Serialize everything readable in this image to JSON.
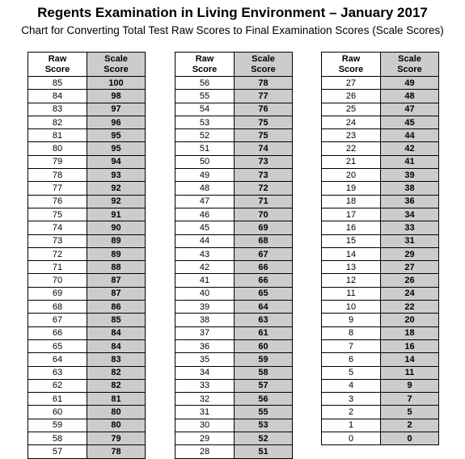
{
  "title": "Regents Examination in Living Environment – January 2017",
  "subtitle": "Chart for Converting Total Test Raw Scores to Final Examination Scores (Scale Scores)",
  "headers": {
    "raw": "Raw\nScore",
    "scale": "Scale\nScore"
  },
  "tables": [
    {
      "rows": [
        [
          "85",
          "100"
        ],
        [
          "84",
          "98"
        ],
        [
          "83",
          "97"
        ],
        [
          "82",
          "96"
        ],
        [
          "81",
          "95"
        ],
        [
          "80",
          "95"
        ],
        [
          "79",
          "94"
        ],
        [
          "78",
          "93"
        ],
        [
          "77",
          "92"
        ],
        [
          "76",
          "92"
        ],
        [
          "75",
          "91"
        ],
        [
          "74",
          "90"
        ],
        [
          "73",
          "89"
        ],
        [
          "72",
          "89"
        ],
        [
          "71",
          "88"
        ],
        [
          "70",
          "87"
        ],
        [
          "69",
          "87"
        ],
        [
          "68",
          "86"
        ],
        [
          "67",
          "85"
        ],
        [
          "66",
          "84"
        ],
        [
          "65",
          "84"
        ],
        [
          "64",
          "83"
        ],
        [
          "63",
          "82"
        ],
        [
          "62",
          "82"
        ],
        [
          "61",
          "81"
        ],
        [
          "60",
          "80"
        ],
        [
          "59",
          "80"
        ],
        [
          "58",
          "79"
        ],
        [
          "57",
          "78"
        ]
      ]
    },
    {
      "rows": [
        [
          "56",
          "78"
        ],
        [
          "55",
          "77"
        ],
        [
          "54",
          "76"
        ],
        [
          "53",
          "75"
        ],
        [
          "52",
          "75"
        ],
        [
          "51",
          "74"
        ],
        [
          "50",
          "73"
        ],
        [
          "49",
          "73"
        ],
        [
          "48",
          "72"
        ],
        [
          "47",
          "71"
        ],
        [
          "46",
          "70"
        ],
        [
          "45",
          "69"
        ],
        [
          "44",
          "68"
        ],
        [
          "43",
          "67"
        ],
        [
          "42",
          "66"
        ],
        [
          "41",
          "66"
        ],
        [
          "40",
          "65"
        ],
        [
          "39",
          "64"
        ],
        [
          "38",
          "63"
        ],
        [
          "37",
          "61"
        ],
        [
          "36",
          "60"
        ],
        [
          "35",
          "59"
        ],
        [
          "34",
          "58"
        ],
        [
          "33",
          "57"
        ],
        [
          "32",
          "56"
        ],
        [
          "31",
          "55"
        ],
        [
          "30",
          "53"
        ],
        [
          "29",
          "52"
        ],
        [
          "28",
          "51"
        ]
      ]
    },
    {
      "rows": [
        [
          "27",
          "49"
        ],
        [
          "26",
          "48"
        ],
        [
          "25",
          "47"
        ],
        [
          "24",
          "45"
        ],
        [
          "23",
          "44"
        ],
        [
          "22",
          "42"
        ],
        [
          "21",
          "41"
        ],
        [
          "20",
          "39"
        ],
        [
          "19",
          "38"
        ],
        [
          "18",
          "36"
        ],
        [
          "17",
          "34"
        ],
        [
          "16",
          "33"
        ],
        [
          "15",
          "31"
        ],
        [
          "14",
          "29"
        ],
        [
          "13",
          "27"
        ],
        [
          "12",
          "26"
        ],
        [
          "11",
          "24"
        ],
        [
          "10",
          "22"
        ],
        [
          "9",
          "20"
        ],
        [
          "8",
          "18"
        ],
        [
          "7",
          "16"
        ],
        [
          "6",
          "14"
        ],
        [
          "5",
          "11"
        ],
        [
          "4",
          "9"
        ],
        [
          "3",
          "7"
        ],
        [
          "2",
          "5"
        ],
        [
          "1",
          "2"
        ],
        [
          "0",
          "0"
        ]
      ]
    }
  ]
}
